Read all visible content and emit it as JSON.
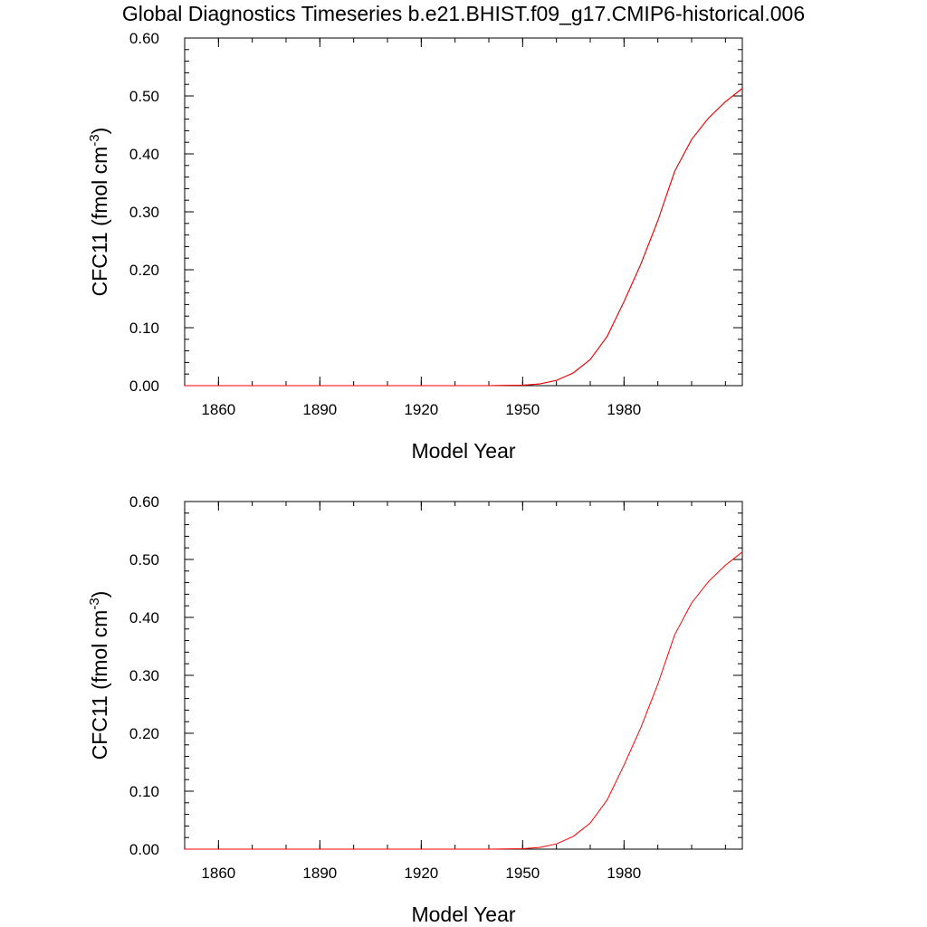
{
  "title": "Global Diagnostics Timeseries b.e21.BHIST.f09_g17.CMIP6-historical.006",
  "chart_data": [
    {
      "type": "line",
      "title": "",
      "xlabel": "Model Year",
      "ylabel": "CFC11 (fmol cm",
      "ylabel_sup": "-3",
      "ylabel_close": ")",
      "xlim": [
        1850,
        2015
      ],
      "ylim": [
        0,
        0.6
      ],
      "xticks": [
        1860,
        1890,
        1920,
        1950,
        1980
      ],
      "xtick_labels": [
        "1860",
        "1890",
        "1920",
        "1950",
        "1980"
      ],
      "yticks": [
        0,
        0.1,
        0.2,
        0.3,
        0.4,
        0.5,
        0.6
      ],
      "ytick_labels": [
        "0.00",
        "0.10",
        "0.20",
        "0.30",
        "0.40",
        "0.50",
        "0.60"
      ],
      "grid": false,
      "series": [
        {
          "color": "#7a1010",
          "x": [
            1850,
            1940,
            1950,
            1955,
            1960,
            1965,
            1970,
            1975,
            1980,
            1985,
            1990,
            1995,
            2000,
            2005,
            2010,
            2015
          ],
          "y": [
            0,
            0,
            0.0008,
            0.003,
            0.009,
            0.022,
            0.045,
            0.085,
            0.145,
            0.21,
            0.285,
            0.37,
            0.425,
            0.462,
            0.49,
            0.513
          ]
        },
        {
          "color": "#ff0000",
          "x": [
            1850,
            1940,
            1950,
            1955,
            1960,
            1965,
            1970,
            1975,
            1980,
            1985,
            1990,
            1995,
            2000,
            2005,
            2010,
            2015
          ],
          "y": [
            0,
            0,
            0.0008,
            0.003,
            0.009,
            0.022,
            0.045,
            0.085,
            0.145,
            0.21,
            0.285,
            0.37,
            0.425,
            0.462,
            0.49,
            0.513
          ]
        }
      ]
    },
    {
      "type": "line",
      "title": "",
      "xlabel": "Model Year",
      "ylabel": "CFC11 (fmol cm",
      "ylabel_sup": "-3",
      "ylabel_close": ")",
      "xlim": [
        1850,
        2015
      ],
      "ylim": [
        0,
        0.6
      ],
      "xticks": [
        1860,
        1890,
        1920,
        1950,
        1980
      ],
      "xtick_labels": [
        "1860",
        "1890",
        "1920",
        "1950",
        "1980"
      ],
      "yticks": [
        0,
        0.1,
        0.2,
        0.3,
        0.4,
        0.5,
        0.6
      ],
      "ytick_labels": [
        "0.00",
        "0.10",
        "0.20",
        "0.30",
        "0.40",
        "0.50",
        "0.60"
      ],
      "grid": false,
      "series": [
        {
          "color": "#ff0000",
          "x": [
            1850,
            1940,
            1950,
            1955,
            1960,
            1965,
            1970,
            1975,
            1980,
            1985,
            1990,
            1995,
            2000,
            2005,
            2010,
            2015
          ],
          "y": [
            0,
            0,
            0.0008,
            0.003,
            0.009,
            0.022,
            0.045,
            0.085,
            0.145,
            0.21,
            0.285,
            0.37,
            0.425,
            0.462,
            0.49,
            0.513
          ]
        }
      ]
    }
  ]
}
